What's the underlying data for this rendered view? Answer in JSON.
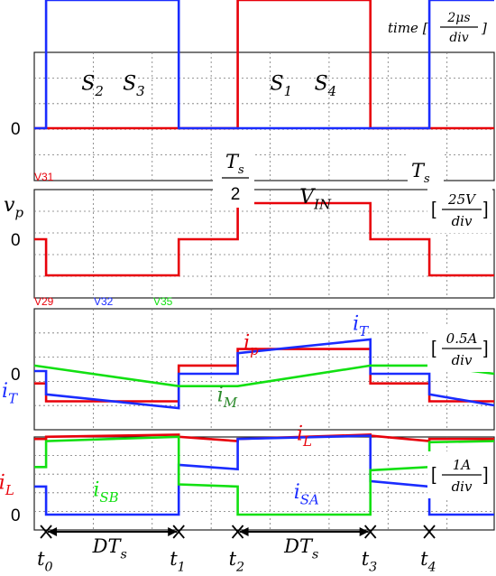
{
  "chart_data": {
    "type": "line",
    "time_scale": {
      "prefix": "time [",
      "num": "2μs",
      "den": "div",
      "suffix": "]"
    },
    "period_marks": {
      "ts_half_num": "T",
      "ts_half_sub": "s",
      "ts_half_den": "2",
      "ts_num": "T",
      "ts_sub": "s"
    },
    "time_axis": {
      "ticks": [
        {
          "name": "t",
          "sub": "0",
          "x": 0.2
        },
        {
          "name": "t",
          "sub": "1",
          "x": 2.45
        },
        {
          "name": "t",
          "sub": "2",
          "x": 3.45
        },
        {
          "name": "t",
          "sub": "3",
          "x": 5.7
        },
        {
          "name": "t",
          "sub": "4",
          "x": 6.7
        }
      ],
      "interval_labels": [
        {
          "text": "DT",
          "sub": "s",
          "from": 0.2,
          "to": 2.45
        },
        {
          "text": "DT",
          "sub": "s",
          "from": 3.45,
          "to": 5.7
        }
      ]
    },
    "panels": [
      {
        "id": "switches",
        "zero_label": "0",
        "ylim": [
          0,
          1
        ],
        "labels": [
          {
            "text": "S",
            "sub": "2",
            "x": 0.8,
            "y": 0.3
          },
          {
            "text": "S",
            "sub": "3",
            "x": 1.5,
            "y": 0.3
          },
          {
            "text": "S",
            "sub": "1",
            "x": 4.0,
            "y": 0.3
          },
          {
            "text": "S",
            "sub": "4",
            "x": 4.75,
            "y": 0.3
          }
        ],
        "series": [
          {
            "color": "#e8000a",
            "x": [
              0,
              3.45,
              3.45,
              5.7,
              5.7,
              7.8
            ],
            "y": [
              0,
              0,
              1,
              1,
              0,
              0
            ]
          },
          {
            "color": "#1a2cff",
            "x": [
              0,
              0.2,
              0.2,
              2.45,
              2.45,
              6.7,
              6.7,
              7.8
            ],
            "y": [
              0,
              0,
              1,
              1,
              0,
              0,
              1,
              1
            ]
          }
        ]
      },
      {
        "id": "vp",
        "probe": "V31",
        "probe_color": "#e8000a",
        "var": "v",
        "var_sub": "p",
        "zero_label": "0",
        "scale": {
          "num": "25V",
          "den": "div"
        },
        "labels": [
          {
            "text": "V",
            "sub": "IN",
            "x": 4.5,
            "y": 1.0
          }
        ],
        "ylim": [
          -1.5,
          1.5
        ],
        "series": [
          {
            "color": "#e8000a",
            "x": [
              0,
              0.2,
              0.2,
              2.45,
              2.45,
              3.45,
              3.45,
              5.7,
              5.7,
              6.7,
              6.7,
              7.8
            ],
            "y": [
              0,
              0,
              -1,
              -1,
              0,
              0,
              1,
              1,
              0,
              0,
              -1,
              -1
            ]
          }
        ]
      },
      {
        "id": "currents-primary",
        "probes": [
          {
            "text": "V29",
            "color": "#e8000a"
          },
          {
            "text": "V32",
            "color": "#1a2cff"
          },
          {
            "text": "V35",
            "color": "#12e012"
          }
        ],
        "zero_label": "0",
        "scale": {
          "num": "0.5A",
          "den": "div"
        },
        "labels": [
          {
            "text": "i",
            "sub": "p",
            "color": "#e8000a",
            "x": 3.55,
            "y": 0.9
          },
          {
            "text": "i",
            "sub": "T",
            "color": "#1a2cff",
            "x": 5.4,
            "y": 1.6
          },
          {
            "text": "i",
            "sub": "T",
            "color": "#1a2cff",
            "x": -0.55,
            "y": -0.85
          },
          {
            "text": "i",
            "sub": "M",
            "color": "#2a8a2a",
            "x": 3.1,
            "y": -1.0
          }
        ],
        "ylim": [
          -2.2,
          2.2
        ],
        "series": [
          {
            "name": "i_p",
            "color": "#e8000a",
            "x": [
              0,
              0.2,
              0.2,
              2.45,
              2.45,
              3.45,
              3.45,
              5.7,
              5.7,
              6.7,
              6.7,
              7.8
            ],
            "y": [
              -0.35,
              -0.35,
              -1.0,
              -1.0,
              0.3,
              0.3,
              0.9,
              0.9,
              -0.35,
              -0.35,
              -1.0,
              -1.0
            ]
          },
          {
            "name": "i_T",
            "color": "#1a2cff",
            "x": [
              0,
              0.2,
              0.2,
              2.45,
              2.45,
              3.45,
              3.45,
              5.7,
              5.7,
              6.7,
              6.7,
              7.8
            ],
            "y": [
              0.1,
              0.1,
              -0.75,
              -1.25,
              0.0,
              0.0,
              0.75,
              1.25,
              0.0,
              0.0,
              -0.75,
              -1.15
            ]
          },
          {
            "name": "i_M",
            "color": "#12e012",
            "x": [
              0,
              2.45,
              3.45,
              5.7,
              6.7,
              7.8
            ],
            "y": [
              0.3,
              -0.45,
              -0.45,
              0.3,
              0.3,
              0.0
            ]
          }
        ]
      },
      {
        "id": "currents-secondary",
        "zero_label": "0",
        "scale": {
          "num": "1A",
          "den": "div"
        },
        "labels": [
          {
            "text": "i",
            "sub": "L",
            "color": "#e8000a",
            "x": -0.6,
            "y": 1.2
          },
          {
            "text": "i",
            "sub": "L",
            "color": "#e8000a",
            "x": 4.45,
            "y": 3.45
          },
          {
            "text": "i",
            "sub": "SB",
            "color": "#12e012",
            "x": 1.0,
            "y": 0.85
          },
          {
            "text": "i",
            "sub": "SA",
            "color": "#1a2cff",
            "x": 4.4,
            "y": 0.75
          }
        ],
        "ylim": [
          -0.3,
          4.0
        ],
        "series": [
          {
            "name": "i_L",
            "color": "#e8000a",
            "x": [
              0,
              0.2,
              0.2,
              2.45,
              2.45,
              3.45,
              3.45,
              5.7,
              5.7,
              6.7,
              6.7,
              7.8
            ],
            "y": [
              3.5,
              3.5,
              3.6,
              3.7,
              3.6,
              3.4,
              3.5,
              3.7,
              3.65,
              3.4,
              3.5,
              3.5
            ]
          },
          {
            "name": "i_SA",
            "color": "#1a2cff",
            "x": [
              0,
              0.2,
              0.2,
              2.45,
              2.45,
              3.45,
              3.45,
              5.7,
              5.7,
              6.7,
              6.7,
              7.8
            ],
            "y": [
              1.3,
              1.3,
              0,
              0,
              2.3,
              2.1,
              3.5,
              3.65,
              1.55,
              1.3,
              0,
              0
            ]
          },
          {
            "name": "i_SB",
            "color": "#12e012",
            "x": [
              0,
              0.2,
              0.2,
              2.45,
              2.45,
              3.45,
              3.45,
              5.7,
              5.7,
              6.7,
              6.7,
              7.8
            ],
            "y": [
              2.2,
              2.2,
              3.4,
              3.6,
              1.4,
              1.3,
              0,
              0,
              2.05,
              2.2,
              3.35,
              3.4
            ]
          }
        ]
      }
    ]
  }
}
